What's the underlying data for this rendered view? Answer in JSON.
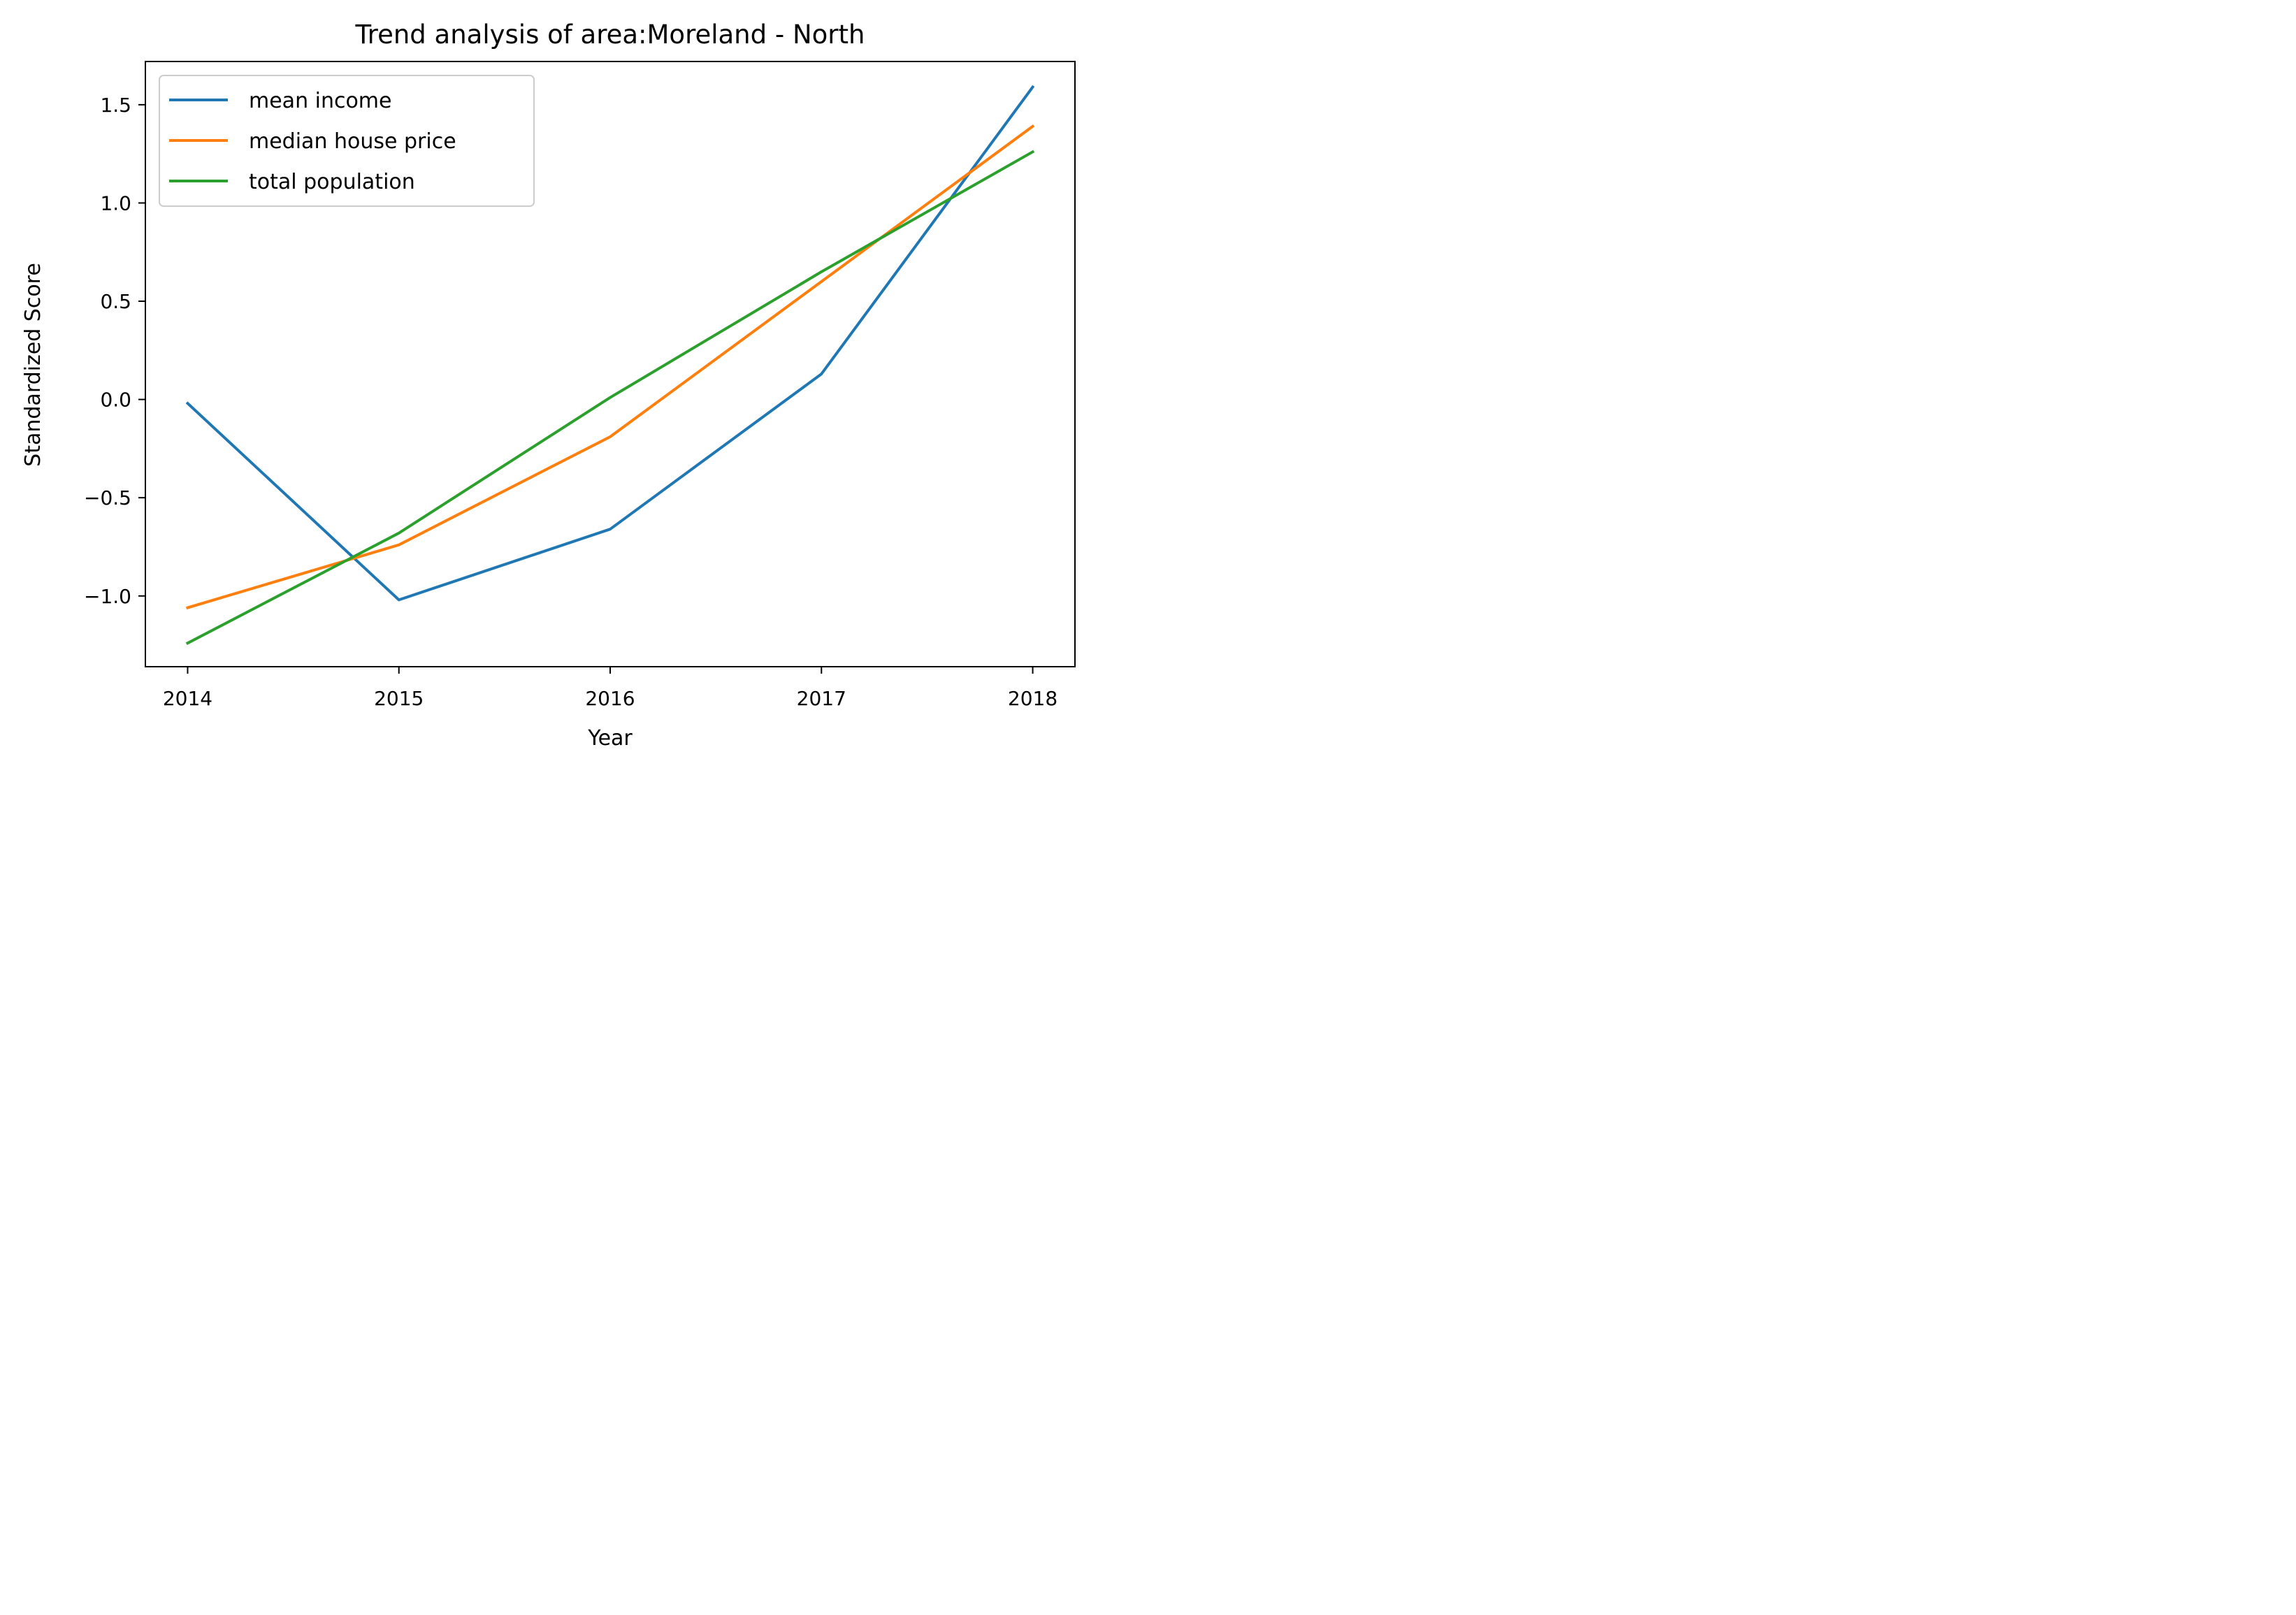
{
  "chart_data": {
    "type": "line",
    "title": "Trend analysis of area:Moreland - North",
    "xlabel": "Year",
    "ylabel": "Standardized Score",
    "x": [
      2014,
      2015,
      2016,
      2017,
      2018
    ],
    "x_tick_labels": [
      "2014",
      "2015",
      "2016",
      "2017",
      "2018"
    ],
    "y_ticks": [
      -1.0,
      -0.5,
      0.0,
      0.5,
      1.0,
      1.5
    ],
    "y_tick_labels": [
      "−1.0",
      "−0.5",
      "0.0",
      "0.5",
      "1.0",
      "1.5"
    ],
    "xlim": [
      2013.8,
      2018.2
    ],
    "ylim": [
      -1.36,
      1.72
    ],
    "grid": false,
    "legend_position": "upper-left",
    "series": [
      {
        "name": "mean income",
        "color": "#1f77b4",
        "values": [
          -0.02,
          -1.02,
          -0.66,
          0.13,
          1.59
        ]
      },
      {
        "name": "median house price",
        "color": "#ff7f0e",
        "values": [
          -1.06,
          -0.74,
          -0.19,
          0.6,
          1.39
        ]
      },
      {
        "name": "total population",
        "color": "#2ca02c",
        "values": [
          -1.24,
          -0.68,
          0.01,
          0.65,
          1.26
        ]
      }
    ]
  }
}
